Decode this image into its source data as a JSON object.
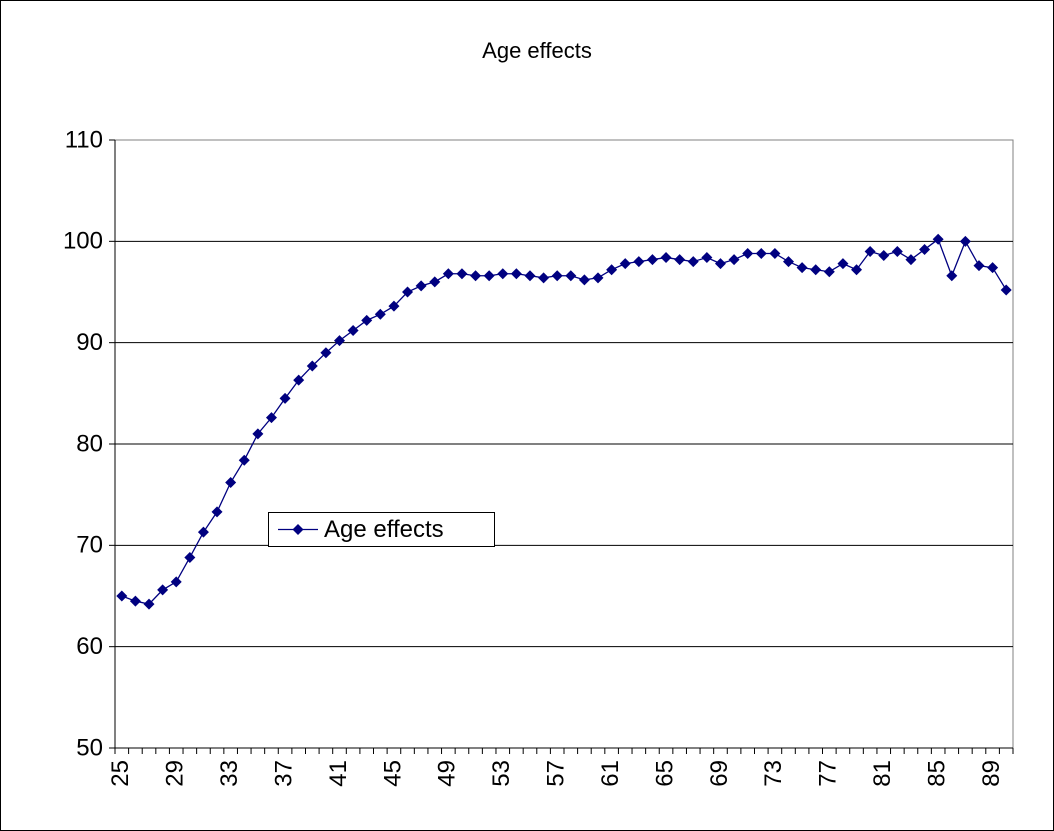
{
  "chart_data": {
    "type": "line",
    "title": "Age effects",
    "categories": [
      "25",
      null,
      null,
      null,
      "29",
      null,
      null,
      null,
      "33",
      null,
      null,
      null,
      "37",
      null,
      null,
      null,
      "41",
      null,
      null,
      null,
      "45",
      null,
      null,
      null,
      "49",
      null,
      null,
      null,
      "53",
      null,
      null,
      null,
      "57",
      null,
      null,
      null,
      "61",
      null,
      null,
      null,
      "65",
      null,
      null,
      null,
      "69",
      null,
      null,
      null,
      "73",
      null,
      null,
      null,
      "77",
      null,
      null,
      null,
      "81",
      null,
      null,
      null,
      "85",
      null,
      null,
      null,
      "89",
      null
    ],
    "series": [
      {
        "name": "Age effects",
        "color": "#000080",
        "values": [
          65.0,
          64.5,
          64.2,
          65.6,
          66.4,
          68.8,
          71.3,
          73.3,
          76.2,
          78.4,
          81.0,
          82.6,
          84.5,
          86.3,
          87.7,
          89.0,
          90.2,
          91.2,
          92.2,
          92.8,
          93.6,
          95.0,
          95.6,
          96.0,
          96.8,
          96.8,
          96.6,
          96.6,
          96.8,
          96.8,
          96.6,
          96.4,
          96.6,
          96.6,
          96.2,
          96.4,
          97.2,
          97.8,
          98.0,
          98.2,
          98.4,
          98.2,
          98.0,
          98.4,
          97.8,
          98.2,
          98.8,
          98.8,
          98.8,
          98.0,
          97.4,
          97.2,
          97.0,
          97.8,
          97.2,
          99.0,
          98.6,
          99.0,
          98.2,
          99.2,
          100.2,
          96.6,
          100.0,
          97.6,
          97.4,
          95.2
        ]
      }
    ],
    "ylim": [
      50,
      110
    ],
    "yticks": [
      50,
      60,
      70,
      80,
      90,
      100,
      110
    ],
    "grid": true,
    "legend_position": "left"
  }
}
